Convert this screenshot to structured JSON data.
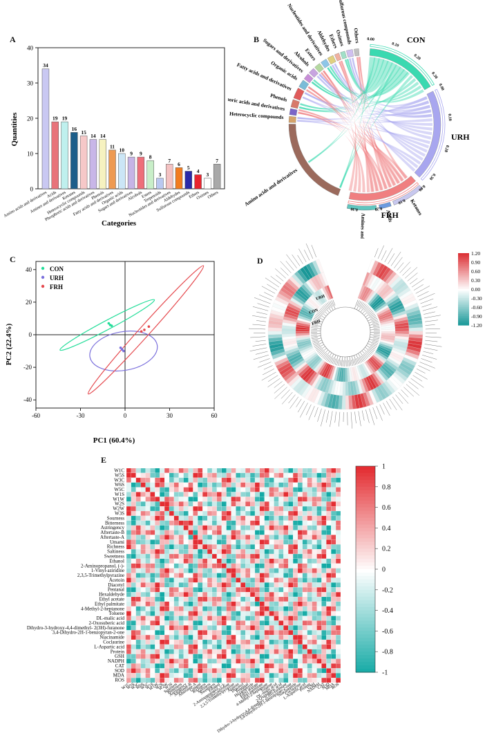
{
  "panels": {
    "a": "A",
    "b": "B",
    "c": "C",
    "d": "D",
    "e": "E"
  },
  "chart_data": [
    {
      "id": "A",
      "type": "bar",
      "xlabel": "Categories",
      "ylabel": "Quantities",
      "ylim": [
        0,
        40
      ],
      "yticks": [
        0,
        10,
        20,
        30,
        40
      ],
      "categories": [
        "Amino acids and derivatives",
        "Acids",
        "Amines and derivatives",
        "Ketones",
        "Heterocyclic compounds",
        "Phosphoric acids and derivatives",
        "Phenols",
        "Fatty acids and derivatives",
        "Organic acids",
        "Sugars and derivatives",
        "Alcohols",
        "Esters",
        "Terpenoids",
        "Nucleotides and derivatives",
        "Aldehydes",
        "Sulfurous compounds",
        "Ethers",
        "Oximes",
        "Others"
      ],
      "values": [
        34,
        19,
        19,
        16,
        15,
        14,
        14,
        11,
        10,
        9,
        9,
        8,
        3,
        7,
        6,
        5,
        4,
        3,
        7
      ],
      "colors": [
        "#c9c8f2",
        "#e8737a",
        "#bff0ee",
        "#1c5e8a",
        "#f6c8c8",
        "#c8b6e8",
        "#f6f2c0",
        "#ee9a52",
        "#cbe6f6",
        "#c6b4e6",
        "#ee6e7a",
        "#c8eec8",
        "#b9c8f0",
        "#f4c2c2",
        "#f27c1e",
        "#2a2aa8",
        "#e8242e",
        "#ffffff",
        "#a9a9a9"
      ]
    },
    {
      "id": "B",
      "type": "chord",
      "groups": [
        "CON",
        "URH",
        "FRH"
      ],
      "group_colors": [
        "#3ad9b0",
        "#a8a6ef",
        "#f07f80"
      ],
      "categories": [
        "Amino acids and derivatives",
        "Heterocyclic compounds",
        "Phosphoric acids and derivatives",
        "Phenols",
        "Fatty acids and derivatives",
        "Organic acids",
        "Sugars and derivatives",
        "Alcohols",
        "Esters",
        "Nucleotides and derivatives",
        "Aldehydes",
        "Ethers",
        "Oximes",
        "Sulfurous compounds",
        "Others",
        "Ketones",
        "Acids",
        "Amines and derivatives"
      ],
      "tick_labels": [
        "0.00",
        "0.10",
        "0.20",
        "0.30"
      ]
    },
    {
      "id": "C",
      "type": "scatter",
      "xlabel": "PC1 (60.4%)",
      "ylabel": "PC2 (22.4%)",
      "xlim": [
        -60,
        60
      ],
      "ylim": [
        -45,
        45
      ],
      "xticks": [
        -60,
        -30,
        0,
        30,
        60
      ],
      "yticks": [
        -40,
        -20,
        0,
        20,
        40
      ],
      "series": [
        {
          "name": "CON",
          "color": "#22dd99",
          "points": [
            [
              -10,
              6
            ],
            [
              -11,
              7
            ],
            [
              -9,
              5.5
            ]
          ]
        },
        {
          "name": "URH",
          "color": "#7a6fdc",
          "points": [
            [
              -2,
              -9
            ],
            [
              -3,
              -8
            ],
            [
              -1,
              -10
            ]
          ]
        },
        {
          "name": "FRH",
          "color": "#e5484d",
          "points": [
            [
              13,
              3
            ],
            [
              16,
              5
            ],
            [
              11,
              2
            ]
          ]
        }
      ]
    },
    {
      "id": "D",
      "type": "circular-heatmap",
      "rings": [
        "URH",
        "CON",
        "FRH"
      ],
      "scale": [
        "1.20",
        "0.90",
        "0.60",
        "0.30",
        "0.00",
        "-0.30",
        "-0.60",
        "-0.90",
        "-1.20"
      ]
    },
    {
      "id": "E",
      "type": "heatmap",
      "rows": [
        "W1C",
        "W5S",
        "W3C",
        "W6S",
        "W5C",
        "W1S",
        "W1W",
        "W2S",
        "W2W",
        "W3S",
        "Sourness",
        "Bitterness",
        "Astringency",
        "Aftertaste-B",
        "Aftertaste-A",
        "Umami",
        "Richness",
        "Saltiness",
        "Sweetness",
        "Ethanol",
        "2-Aminopropanol, (-)-",
        "1-Vinyl-aziridine",
        "2,3,5-Trimethylpyrazine",
        "Acetoin",
        "Diacetyl",
        "Pentanal",
        "Hexaldehyde",
        "Ethyl acetate",
        "Ethyl palmitate",
        "4-Methyl-2-heptanone",
        "Toluene",
        "DL-malic acid",
        "2-Oxosuberic acid",
        "Dihydro-3-hydroxy-4,4-dimethyl- 2(3H)-furanone",
        "3,4-Dihydro-2H-1-benzopyran-2-one",
        "Niacinamide",
        "Coclaurine",
        "L-Aspartic acid",
        "Protein",
        "GSH",
        "NADPH",
        "CAT",
        "SOD",
        "MDA",
        "ROS"
      ],
      "scale": [
        "1",
        "0.8",
        "0.6",
        "0.4",
        "0.2",
        "0",
        "-0.2",
        "-0.4",
        "-0.6",
        "-0.8",
        "-1"
      ]
    }
  ]
}
